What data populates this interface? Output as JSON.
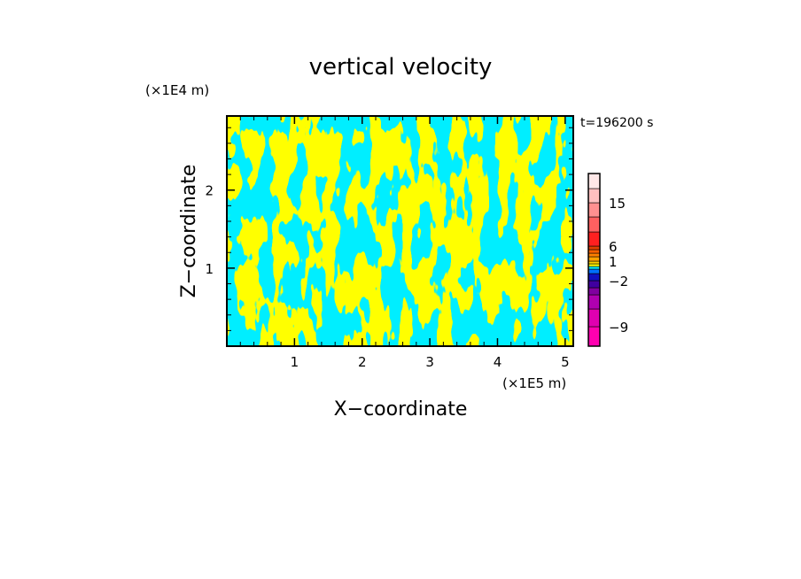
{
  "chart_data": {
    "type": "heatmap",
    "title": "vertical velocity",
    "xlabel": "X−coordinate",
    "ylabel": "Z−coordinate",
    "x_unit": "(×1E5 m)",
    "y_unit": "(×1E4 m)",
    "time_label": "t=196200 s",
    "xlim": [
      0,
      5.12
    ],
    "ylim": [
      0,
      2.95
    ],
    "xticks": [
      1,
      2,
      3,
      4,
      5
    ],
    "yticks": [
      1,
      2
    ],
    "colors": {
      "negative": "#00eeff",
      "positive": "#ffff00"
    },
    "colorbar": {
      "levels": [
        -12,
        -9,
        -6,
        -4,
        -3,
        -2,
        -1,
        -0.5,
        0,
        0.5,
        1,
        2,
        3,
        4,
        6,
        9,
        12,
        15,
        20,
        30
      ],
      "colors": [
        "#ff00b0",
        "#e000b0",
        "#b000b0",
        "#8000a0",
        "#4000a0",
        "#1010c0",
        "#0070ff",
        "#00eeff",
        "#ffff00",
        "#ffd000",
        "#ffa000",
        "#ff8000",
        "#ff6000",
        "#e04000",
        "#ff2020",
        "#ff6060",
        "#ff9090",
        "#ffc0c0",
        "#ffe8e8"
      ],
      "tick_labels": [
        {
          "label": "15",
          "value": 15
        },
        {
          "label": "6",
          "value": 6
        },
        {
          "label": "1",
          "value": 1
        },
        {
          "label": "−2",
          "value": -2
        },
        {
          "label": "−9",
          "value": -9
        }
      ]
    },
    "grid": false
  }
}
